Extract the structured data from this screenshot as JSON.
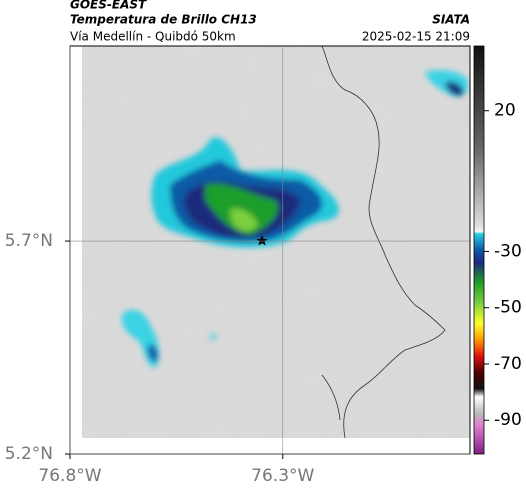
{
  "header": {
    "source": "GOES-EAST",
    "title": "Temperatura de Brillo CH13",
    "subtitle": "Vía Medellín - Quibdó 50km",
    "agency": "SIATA",
    "datetime": "2025-02-15 21:09"
  },
  "map": {
    "xlim": [
      -76.8,
      -75.86
    ],
    "ylim": [
      5.2,
      6.158
    ],
    "xticks": [
      {
        "value": -76.8,
        "label": "76.8°W"
      },
      {
        "value": -76.3,
        "label": "76.3°W"
      }
    ],
    "yticks": [
      {
        "value": 5.7,
        "label": "5.7°N"
      },
      {
        "value": 5.2,
        "label": "5.2°N"
      }
    ],
    "grid": true
  },
  "colorbar": {
    "clim": [
      -102,
      43
    ],
    "ticks": [
      20,
      -30,
      -50,
      -70,
      -90
    ]
  }
}
